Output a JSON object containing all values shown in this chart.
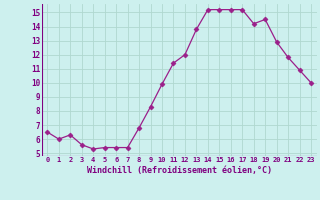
{
  "x": [
    0,
    1,
    2,
    3,
    4,
    5,
    6,
    7,
    8,
    9,
    10,
    11,
    12,
    13,
    14,
    15,
    16,
    17,
    18,
    19,
    20,
    21,
    22,
    23
  ],
  "y": [
    6.5,
    6.0,
    6.3,
    5.6,
    5.3,
    5.4,
    5.4,
    5.4,
    6.8,
    8.3,
    9.9,
    11.4,
    12.0,
    13.8,
    15.2,
    15.2,
    15.2,
    15.2,
    14.2,
    14.5,
    12.9,
    11.8,
    10.9,
    10.0
  ],
  "line_color": "#9b1f8a",
  "marker": "D",
  "marker_size": 2.5,
  "xlim": [
    -0.5,
    23.5
  ],
  "ylim": [
    4.8,
    15.6
  ],
  "yticks": [
    5,
    6,
    7,
    8,
    9,
    10,
    11,
    12,
    13,
    14,
    15
  ],
  "xtick_labels": [
    "0",
    "1",
    "2",
    "3",
    "4",
    "5",
    "6",
    "7",
    "8",
    "9",
    "10",
    "11",
    "12",
    "13",
    "14",
    "15",
    "16",
    "17",
    "18",
    "19",
    "20",
    "21",
    "22",
    "23"
  ],
  "xlabel": "Windchill (Refroidissement éolien,°C)",
  "bg_color": "#cdf0ee",
  "grid_color": "#b0d8d0",
  "tick_color": "#800080",
  "label_color": "#800080"
}
